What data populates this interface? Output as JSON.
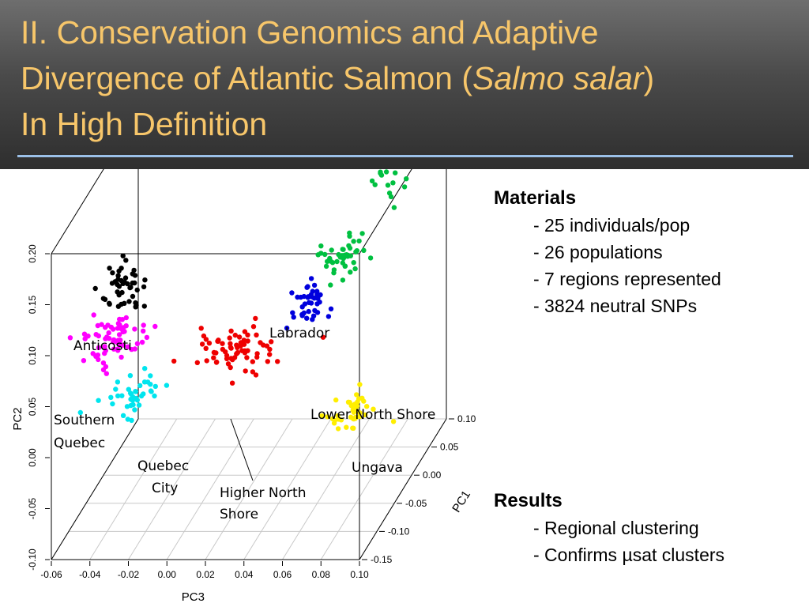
{
  "slide": {
    "title_line1": "II. Conservation Genomics and Adaptive",
    "title_line2_prefix": "Divergence of Atlantic Salmon (",
    "title_species": "Salmo salar",
    "title_line2_suffix": ")",
    "title_line3": "In High Definition",
    "title_color": "#f7c66a",
    "rule_color": "#9bc0e8"
  },
  "materials": {
    "heading": "Materials",
    "items": [
      "- 25 individuals/pop",
      "- 26 populations",
      "- 7 regions represented",
      "- 3824 neutral SNPs"
    ]
  },
  "results": {
    "heading": "Results",
    "items": [
      "- Regional clustering",
      "- Confirms µsat clusters"
    ]
  },
  "chart_data": {
    "type": "scatter",
    "projection": "3d",
    "x_axis": {
      "label": "PC3",
      "range": [
        -0.06,
        0.1
      ],
      "ticks": [
        "-0.06",
        "-0.04",
        "-0.02",
        "0.00",
        "0.02",
        "0.04",
        "0.06",
        "0.08",
        "0.10"
      ]
    },
    "y_axis": {
      "label": "PC2",
      "range": [
        -0.1,
        0.2
      ],
      "ticks": [
        "-0.10",
        "-0.05",
        "0.00",
        "0.05",
        "0.10",
        "0.15",
        "0.20"
      ]
    },
    "z_axis": {
      "label": "PC1",
      "range": [
        -0.15,
        0.1
      ],
      "ticks": [
        "-0.15",
        "-0.10",
        "-0.05",
        "0.00",
        "0.05",
        "0.10"
      ]
    },
    "series": [
      {
        "name": "Anticosti",
        "color": "#000000",
        "pc3": -0.035,
        "pc1": -0.08,
        "pc2": 0.13,
        "n": 45,
        "spread": [
          0.006,
          0.012,
          0.012
        ]
      },
      {
        "name": "Southern Quebec",
        "color": "#ff00ff",
        "pc3": -0.04,
        "pc1": -0.08,
        "pc2": 0.077,
        "n": 65,
        "spread": [
          0.008,
          0.012,
          0.011
        ]
      },
      {
        "name": "Quebec City",
        "color": "#00e5ee",
        "pc3": -0.022,
        "pc1": -0.13,
        "pc2": 0.052,
        "n": 40,
        "spread": [
          0.007,
          0.012,
          0.01
        ]
      },
      {
        "name": "Higher North Shore",
        "color": "#ee0000",
        "pc3": 0.02,
        "pc1": -0.06,
        "pc2": 0.055,
        "n": 70,
        "spread": [
          0.012,
          0.012,
          0.01
        ]
      },
      {
        "name": "Lower North Shore",
        "color": "#0000dd",
        "pc3": 0.05,
        "pc1": -0.02,
        "pc2": 0.08,
        "n": 40,
        "spread": [
          0.005,
          0.012,
          0.01
        ]
      },
      {
        "name": "Labrador",
        "color": "#00c040",
        "pc3": 0.065,
        "pc1": 0.0,
        "pc2": 0.113,
        "n": 45,
        "spread": [
          0.006,
          0.012,
          0.009
        ]
      },
      {
        "name": "Labrador",
        "color": "#00c040",
        "pc3": 0.085,
        "pc1": 0.02,
        "pc2": 0.185,
        "n": 22,
        "spread": [
          0.005,
          0.01,
          0.018
        ]
      },
      {
        "name": "Ungava",
        "color": "#ffee00",
        "pc3": 0.08,
        "pc1": -0.07,
        "pc2": 0.0,
        "n": 40,
        "spread": [
          0.007,
          0.012,
          0.006
        ]
      }
    ],
    "annotations": [
      {
        "text": "Anticosti"
      },
      {
        "text": "Labrador"
      },
      {
        "text": "Southern"
      },
      {
        "text": "Quebec"
      },
      {
        "text": "Lower North Shore"
      },
      {
        "text": "Ungava"
      },
      {
        "text": "Quebec"
      },
      {
        "text": "City"
      },
      {
        "text": "Higher North"
      },
      {
        "text": "Shore"
      }
    ]
  }
}
